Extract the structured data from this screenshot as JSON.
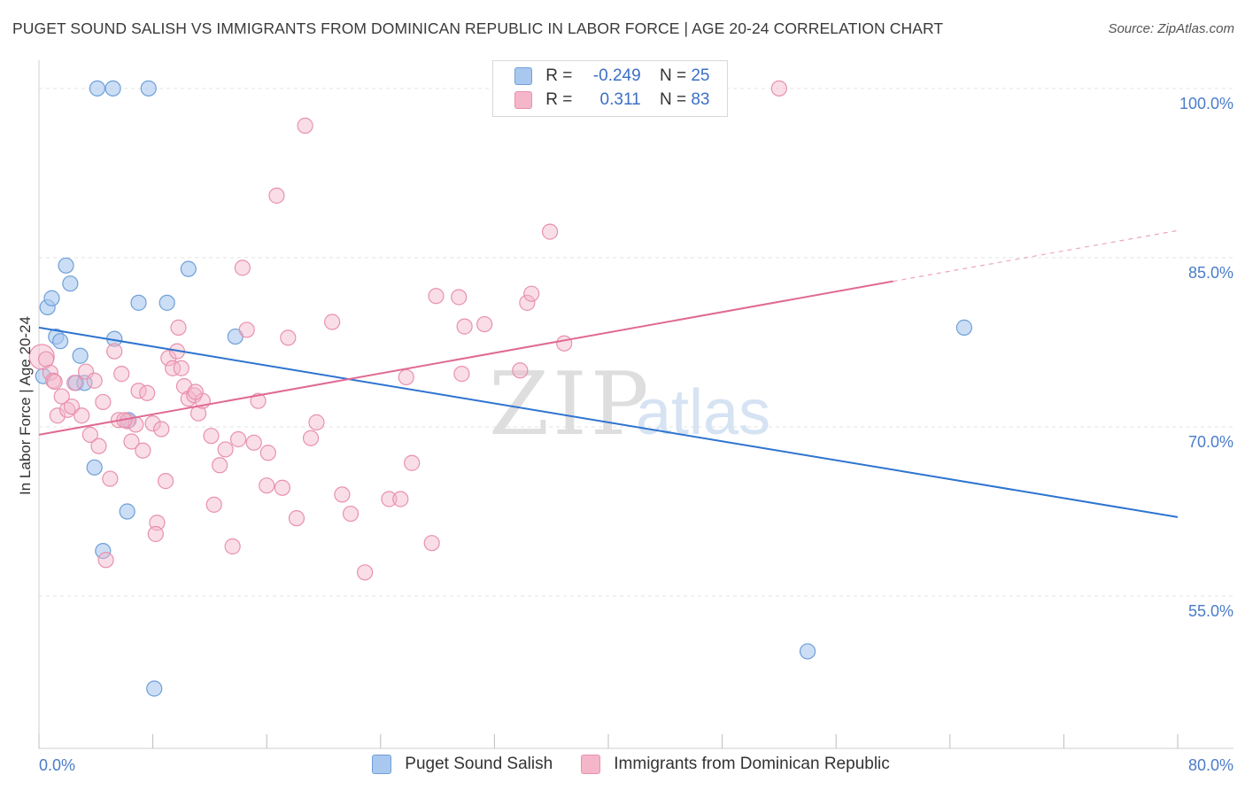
{
  "title": "PUGET SOUND SALISH VS IMMIGRANTS FROM DOMINICAN REPUBLIC IN LABOR FORCE | AGE 20-24 CORRELATION CHART",
  "source": "Source: ZipAtlas.com",
  "watermark": {
    "zip": "ZIP",
    "atlas": "atlas"
  },
  "legend": {
    "rows": [
      {
        "r_label": "R =",
        "r_value": "-0.249",
        "n_label": "N =",
        "n_value": "25"
      },
      {
        "r_label": "R =",
        "r_value": " 0.311",
        "n_label": "N =",
        "n_value": "83"
      }
    ]
  },
  "bottom_legend": {
    "series1": "Puget Sound Salish",
    "series2": "Immigrants from Dominican Republic"
  },
  "colors": {
    "blue_fill": "#a9c8ef",
    "blue_stroke": "#6f9fd8",
    "blue_line": "#2e74cf",
    "pink_fill": "#f5b6c9",
    "pink_stroke": "#e891ad",
    "pink_line": "#e06a95",
    "tick_label": "#4a7cc9",
    "grid": "#e3e3e3"
  },
  "chart_data": {
    "type": "scatter",
    "title": "PUGET SOUND SALISH VS IMMIGRANTS FROM DOMINICAN REPUBLIC IN LABOR FORCE | AGE 20-24 CORRELATION CHART",
    "xlabel": "",
    "ylabel": "In Labor Force | Age 20-24",
    "xlim": [
      0,
      80
    ],
    "ylim": [
      41.5,
      102.5
    ],
    "x_tick_labels": [
      "0.0%",
      "80.0%"
    ],
    "y_ticks": [
      55,
      70,
      85,
      100
    ],
    "y_tick_labels": [
      "55.0%",
      "70.0%",
      "85.0%",
      "100.0%"
    ],
    "grid": true,
    "series": [
      {
        "name": "Puget Sound Salish",
        "R": -0.249,
        "N": 25,
        "trend": {
          "x0": 0,
          "y0": 78.8,
          "x1": 80,
          "y1": 62.0
        },
        "points": [
          [
            0.3,
            74.5
          ],
          [
            0.6,
            80.6
          ],
          [
            0.9,
            81.4
          ],
          [
            1.2,
            78.0
          ],
          [
            1.5,
            77.6
          ],
          [
            1.9,
            84.3
          ],
          [
            2.2,
            82.7
          ],
          [
            2.6,
            73.9
          ],
          [
            2.9,
            76.3
          ],
          [
            3.2,
            73.9
          ],
          [
            3.9,
            66.4
          ],
          [
            4.1,
            100.0
          ],
          [
            4.5,
            59.0
          ],
          [
            5.2,
            100.0
          ],
          [
            5.3,
            77.8
          ],
          [
            6.2,
            62.5
          ],
          [
            6.3,
            70.6
          ],
          [
            7.0,
            81.0
          ],
          [
            7.7,
            100.0
          ],
          [
            8.1,
            46.8
          ],
          [
            9.0,
            81.0
          ],
          [
            10.5,
            84.0
          ],
          [
            13.8,
            78.0
          ],
          [
            54.0,
            50.1
          ],
          [
            65.0,
            78.8
          ]
        ]
      },
      {
        "name": "Immigrants from Dominican Republic",
        "R": 0.311,
        "N": 83,
        "trend": {
          "x0": 0,
          "y0": 69.3,
          "x1": 60,
          "y1": 82.9,
          "dash_x1": 80,
          "dash_y1": 87.4
        },
        "points": [
          [
            0.2,
            76.2
          ],
          [
            0.5,
            76.0
          ],
          [
            0.8,
            74.8
          ],
          [
            1.0,
            74.1
          ],
          [
            1.3,
            71.0
          ],
          [
            1.6,
            72.7
          ],
          [
            2.0,
            71.5
          ],
          [
            2.3,
            71.8
          ],
          [
            2.5,
            73.9
          ],
          [
            3.0,
            71.0
          ],
          [
            3.3,
            74.9
          ],
          [
            3.6,
            69.3
          ],
          [
            3.9,
            74.1
          ],
          [
            4.2,
            68.3
          ],
          [
            4.5,
            72.2
          ],
          [
            5.0,
            65.4
          ],
          [
            5.3,
            76.7
          ],
          [
            5.6,
            70.6
          ],
          [
            5.8,
            74.7
          ],
          [
            6.2,
            70.5
          ],
          [
            6.5,
            68.7
          ],
          [
            6.8,
            70.2
          ],
          [
            7.0,
            73.2
          ],
          [
            7.3,
            67.9
          ],
          [
            7.6,
            73.0
          ],
          [
            8.0,
            70.3
          ],
          [
            8.3,
            61.5
          ],
          [
            8.2,
            60.5
          ],
          [
            8.6,
            69.8
          ],
          [
            8.9,
            65.2
          ],
          [
            9.1,
            76.1
          ],
          [
            9.4,
            75.2
          ],
          [
            9.7,
            76.7
          ],
          [
            10.0,
            75.2
          ],
          [
            10.2,
            73.6
          ],
          [
            10.5,
            72.5
          ],
          [
            10.9,
            72.8
          ],
          [
            11.2,
            71.2
          ],
          [
            11.5,
            72.3
          ],
          [
            12.1,
            69.2
          ],
          [
            12.3,
            63.1
          ],
          [
            12.7,
            66.6
          ],
          [
            13.1,
            68.0
          ],
          [
            13.6,
            59.4
          ],
          [
            14.0,
            68.9
          ],
          [
            14.6,
            78.6
          ],
          [
            15.1,
            68.6
          ],
          [
            15.4,
            72.3
          ],
          [
            16.1,
            67.7
          ],
          [
            16.7,
            90.5
          ],
          [
            17.1,
            64.6
          ],
          [
            17.5,
            77.9
          ],
          [
            18.1,
            61.9
          ],
          [
            18.7,
            96.7
          ],
          [
            19.1,
            69.0
          ],
          [
            19.5,
            70.4
          ],
          [
            20.6,
            79.3
          ],
          [
            21.3,
            64.0
          ],
          [
            21.9,
            62.3
          ],
          [
            22.9,
            57.1
          ],
          [
            24.6,
            63.6
          ],
          [
            25.4,
            63.6
          ],
          [
            25.8,
            74.4
          ],
          [
            26.2,
            66.8
          ],
          [
            27.6,
            59.7
          ],
          [
            27.9,
            81.6
          ],
          [
            29.5,
            81.5
          ],
          [
            29.7,
            74.7
          ],
          [
            29.9,
            78.9
          ],
          [
            31.3,
            79.1
          ],
          [
            33.8,
            75.0
          ],
          [
            34.3,
            81.0
          ],
          [
            34.6,
            81.8
          ],
          [
            35.9,
            87.3
          ],
          [
            36.9,
            77.4
          ],
          [
            52.0,
            100.0
          ],
          [
            9.8,
            78.8
          ],
          [
            14.3,
            84.1
          ],
          [
            4.7,
            58.2
          ],
          [
            1.1,
            74.0
          ],
          [
            6.0,
            70.6
          ],
          [
            11.0,
            73.1
          ],
          [
            16.0,
            64.8
          ]
        ]
      }
    ]
  }
}
